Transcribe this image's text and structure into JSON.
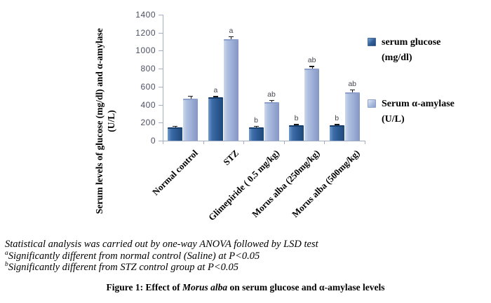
{
  "chart_data": {
    "type": "bar",
    "title": "",
    "categories": [
      "Normal control",
      "STZ",
      "Glimepiride ( 0.5 mg/kg)",
      "Morus alba (250mg/kg)",
      "Morus alba (500mg/kg)"
    ],
    "series": [
      {
        "name": "serum glucose (mg/dl)",
        "color": "#2e5c96",
        "values": [
          150,
          480,
          150,
          170,
          170
        ],
        "errors": [
          15,
          15,
          15,
          15,
          15
        ],
        "sig_labels": [
          "",
          "a",
          "b",
          "b",
          "b"
        ]
      },
      {
        "name": "Serum α-amylase (U/L)",
        "color": "#9badd5",
        "values": [
          470,
          1130,
          430,
          800,
          540
        ],
        "errors": [
          30,
          30,
          25,
          30,
          30
        ],
        "sig_labels": [
          "",
          "a",
          "ab",
          "ab",
          "ab"
        ]
      }
    ],
    "ylabel_line1": "Serum levels of glucose (mg/dl) and α-amylase",
    "ylabel_line2": "(U/L)",
    "xlabel": "",
    "ylim": [
      0,
      1400
    ],
    "ytick_step": 200,
    "yticks": [
      "0",
      "200",
      "400",
      "600",
      "800",
      "1000",
      "1200",
      "1400"
    ],
    "grid": false,
    "legend_position": "right"
  },
  "legend": {
    "entries": [
      {
        "line1": "serum glucose",
        "line2": "(mg/dl)",
        "color": "#2e5c96"
      },
      {
        "line1": "Serum α-amylase",
        "line2": "(U/L)",
        "color": "#9badd5"
      }
    ]
  },
  "figure": {
    "footnotes": [
      {
        "sup": "",
        "text": "Statistical analysis was carried out by one-way ANOVA followed by LSD test"
      },
      {
        "sup": "a",
        "text": "Significantly different from normal control (Saline) at P<0.05"
      },
      {
        "sup": "b",
        "text": "Significantly different from STZ control group at P<0.05"
      }
    ],
    "caption": {
      "prefix": "Figure 1: Effect of ",
      "italic": "Morus alba",
      "suffix": " on serum glucose and α-amylase levels"
    }
  }
}
